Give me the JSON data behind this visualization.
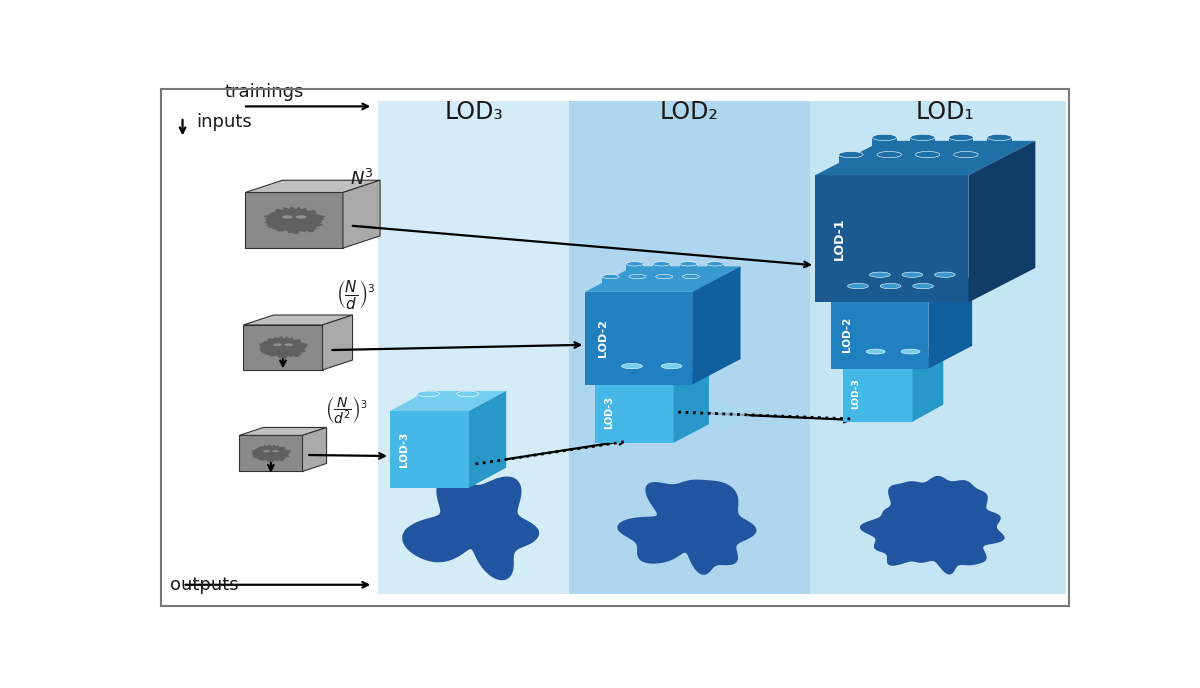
{
  "bg_color": "#ffffff",
  "border_color": "#777777",
  "lod_labels": [
    "LOD₃",
    "LOD₂",
    "LOD₁"
  ],
  "lod3_bg": "#d4ecf7",
  "lod2_bg": "#aed6ee",
  "lod1_bg": "#c5e5f5",
  "lego_lod3_face": "#45b8e8",
  "lego_lod3_top": "#75cef0",
  "lego_lod3_side": "#2898c8",
  "lego_lod2_face": "#2080c0",
  "lego_lod2_top": "#3898d0",
  "lego_lod2_side": "#1060a0",
  "lego_lod1_face": "#1a5a90",
  "lego_lod1_top": "#2070a8",
  "lego_lod1_side": "#0f3d68",
  "brain_color": "#2255a0",
  "text_color": "#1a1a1a",
  "cube_front": "#8a8a8a",
  "cube_top": "#bbbbbb",
  "cube_side": "#9a9a9a",
  "cube_brain": "#555555"
}
